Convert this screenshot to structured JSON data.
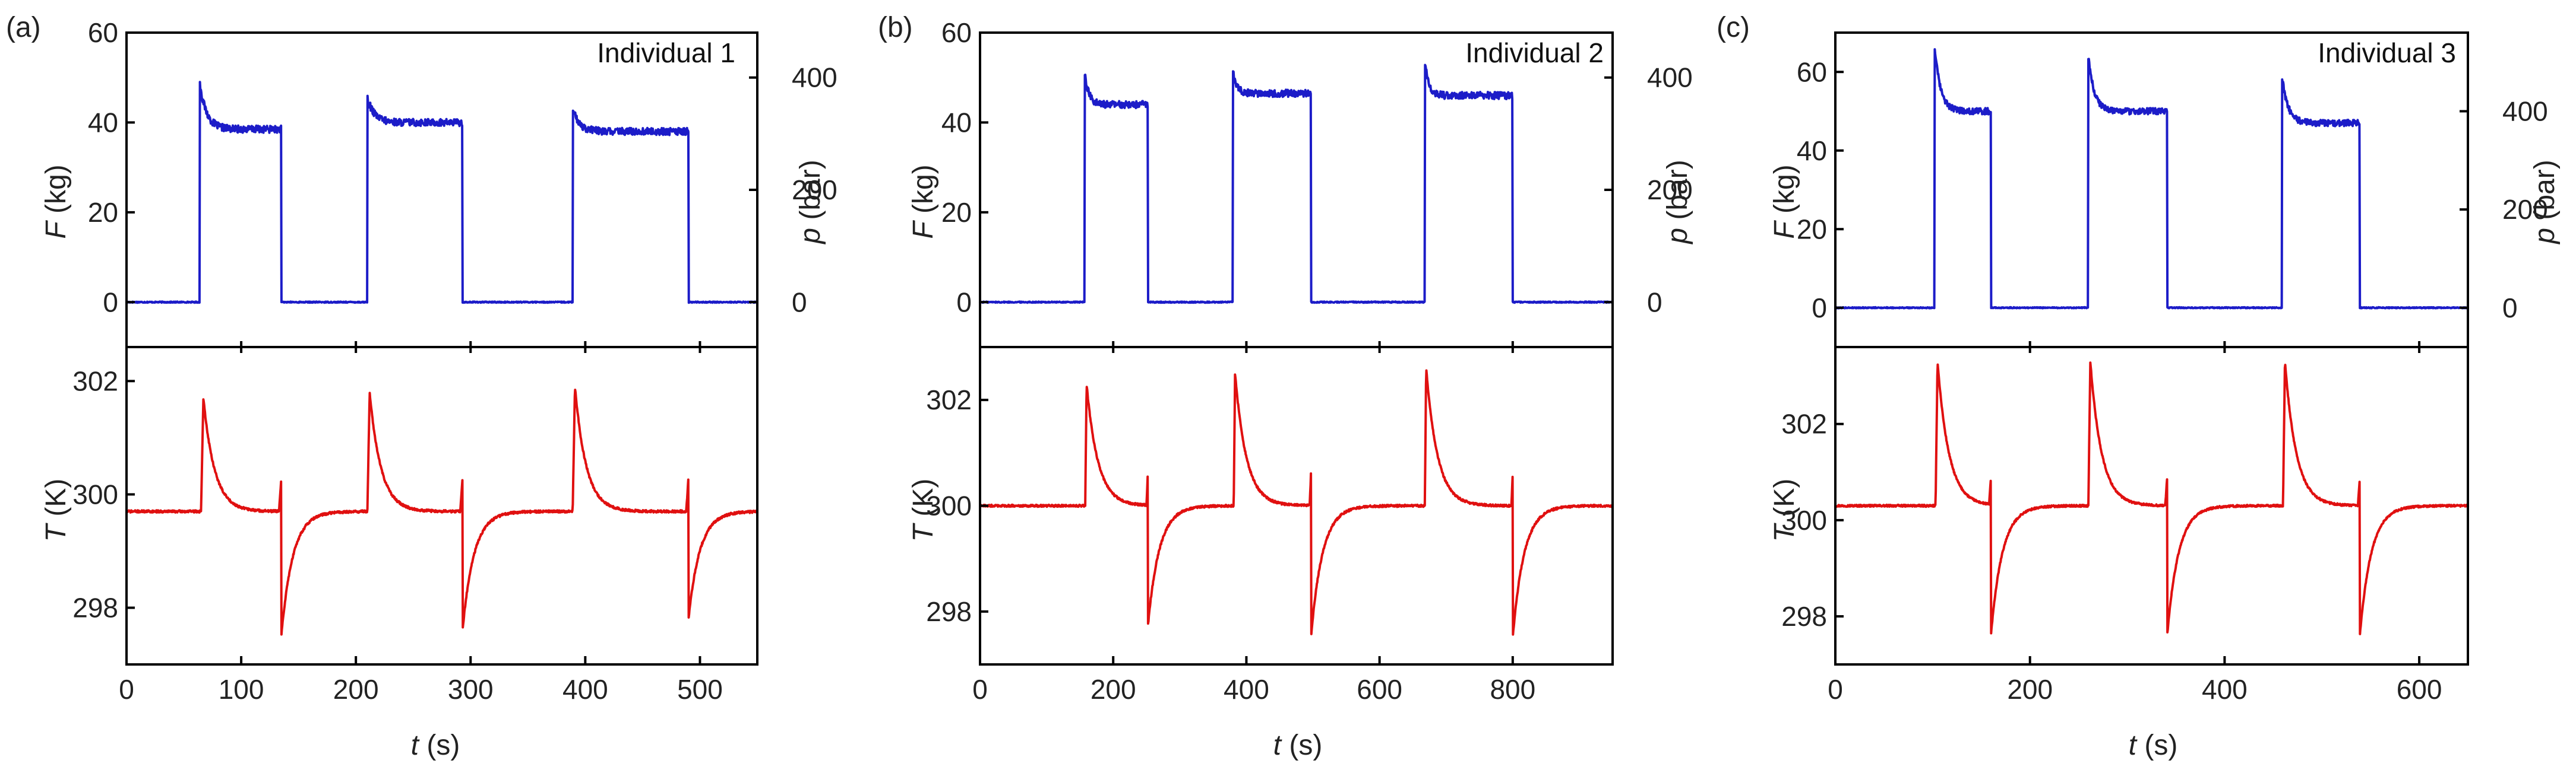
{
  "figure": {
    "description_title": "",
    "colors": {
      "force": "#1c1cc8",
      "temperature": "#e01010",
      "axis": "#000000"
    }
  },
  "chart_data": [
    {
      "type": "line",
      "panel": "(a)",
      "title": "Individual 1",
      "xlabel_var": "t",
      "xlabel_unit": " (s)",
      "x_range": [
        0,
        550
      ],
      "x_ticks": [
        0,
        100,
        200,
        300,
        400,
        500
      ],
      "top": {
        "ylabel_var": "F",
        "ylabel_unit": " (kg)",
        "y_range": [
          -10,
          60
        ],
        "y_ticks": [
          0,
          20,
          40,
          60
        ],
        "right_ylabel_var": "p",
        "right_ylabel_unit": " (bar)",
        "right_y_range": [
          -80,
          480
        ],
        "right_y_ticks": [
          0,
          200,
          400
        ],
        "series": [
          {
            "name": "F",
            "color": "#1c1cc8",
            "pulses": [
              {
                "on": 64,
                "off": 135,
                "peak": 48.5,
                "plateau": 38.5
              },
              {
                "on": 210,
                "off": 293,
                "peak": 45.5,
                "plateau": 40.0
              },
              {
                "on": 389,
                "off": 490,
                "peak": 43.0,
                "plateau": 38.0
              }
            ]
          }
        ]
      },
      "bottom": {
        "ylabel_var": "T",
        "ylabel_unit": " (K)",
        "y_range": [
          297.0,
          302.6
        ],
        "y_ticks": [
          298,
          300,
          302
        ],
        "series": [
          {
            "name": "T",
            "color": "#e01010",
            "baseline": 299.7,
            "heat_events": [
              {
                "t": 67,
                "peak": 301.7
              },
              {
                "t": 212,
                "peak": 301.8
              },
              {
                "t": 391,
                "peak": 301.9
              }
            ],
            "cool_events": [
              {
                "t": 135,
                "min": 297.5
              },
              {
                "t": 293,
                "min": 297.6
              },
              {
                "t": 490,
                "min": 297.8
              }
            ]
          }
        ]
      }
    },
    {
      "type": "line",
      "panel": "(b)",
      "title": "Individual 2",
      "xlabel_var": "t",
      "xlabel_unit": " (s)",
      "x_range": [
        0,
        950
      ],
      "x_ticks": [
        0,
        200,
        400,
        600,
        800
      ],
      "top": {
        "ylabel_var": "F",
        "ylabel_unit": " (kg)",
        "y_range": [
          -10,
          60
        ],
        "y_ticks": [
          0,
          20,
          40,
          60
        ],
        "right_ylabel_var": "p",
        "right_ylabel_unit": " (bar)",
        "right_y_range": [
          -80,
          480
        ],
        "right_y_ticks": [
          0,
          200,
          400
        ],
        "series": [
          {
            "name": "F",
            "color": "#1c1cc8",
            "pulses": [
              {
                "on": 157,
                "off": 252,
                "peak": 51.5,
                "plateau": 44.0
              },
              {
                "on": 380,
                "off": 497,
                "peak": 51.0,
                "plateau": 46.5
              },
              {
                "on": 668,
                "off": 800,
                "peak": 54.0,
                "plateau": 46.0
              }
            ]
          }
        ]
      },
      "bottom": {
        "ylabel_var": "T",
        "ylabel_unit": " (K)",
        "y_range": [
          297.0,
          303.0
        ],
        "y_ticks": [
          298,
          300,
          302
        ],
        "series": [
          {
            "name": "T",
            "color": "#e01010",
            "baseline": 300.0,
            "heat_events": [
              {
                "t": 160,
                "peak": 302.3
              },
              {
                "t": 383,
                "peak": 302.5
              },
              {
                "t": 670,
                "peak": 302.6
              }
            ],
            "cool_events": [
              {
                "t": 252,
                "min": 297.7
              },
              {
                "t": 497,
                "min": 297.5
              },
              {
                "t": 800,
                "min": 297.5
              }
            ]
          }
        ]
      }
    },
    {
      "type": "line",
      "panel": "(c)",
      "title": "Individual 3",
      "xlabel_var": "t",
      "xlabel_unit": " (s)",
      "x_range": [
        0,
        650
      ],
      "x_ticks": [
        0,
        200,
        400,
        600
      ],
      "top": {
        "ylabel_var": "F",
        "ylabel_unit": " (kg)",
        "y_range": [
          -10,
          70
        ],
        "y_ticks": [
          0,
          20,
          40,
          60
        ],
        "right_ylabel_var": "p",
        "right_ylabel_unit": " (bar)",
        "right_y_range": [
          -80,
          560
        ],
        "right_y_ticks": [
          0,
          200,
          400
        ],
        "series": [
          {
            "name": "F",
            "color": "#1c1cc8",
            "pulses": [
              {
                "on": 102,
                "off": 160,
                "peak": 66.5,
                "plateau": 50.0
              },
              {
                "on": 260,
                "off": 341,
                "peak": 64.0,
                "plateau": 50.0
              },
              {
                "on": 459,
                "off": 539,
                "peak": 59.0,
                "plateau": 47.0
              }
            ]
          }
        ]
      },
      "bottom": {
        "ylabel_var": "T",
        "ylabel_unit": " (K)",
        "y_range": [
          297.0,
          303.6
        ],
        "y_ticks": [
          298,
          300,
          302
        ],
        "series": [
          {
            "name": "T",
            "color": "#e01010",
            "baseline": 300.3,
            "heat_events": [
              {
                "t": 105,
                "peak": 303.3
              },
              {
                "t": 262,
                "peak": 303.3
              },
              {
                "t": 462,
                "peak": 303.3
              }
            ],
            "cool_events": [
              {
                "t": 160,
                "min": 297.6
              },
              {
                "t": 341,
                "min": 297.6
              },
              {
                "t": 539,
                "min": 297.6
              }
            ]
          }
        ]
      }
    }
  ]
}
